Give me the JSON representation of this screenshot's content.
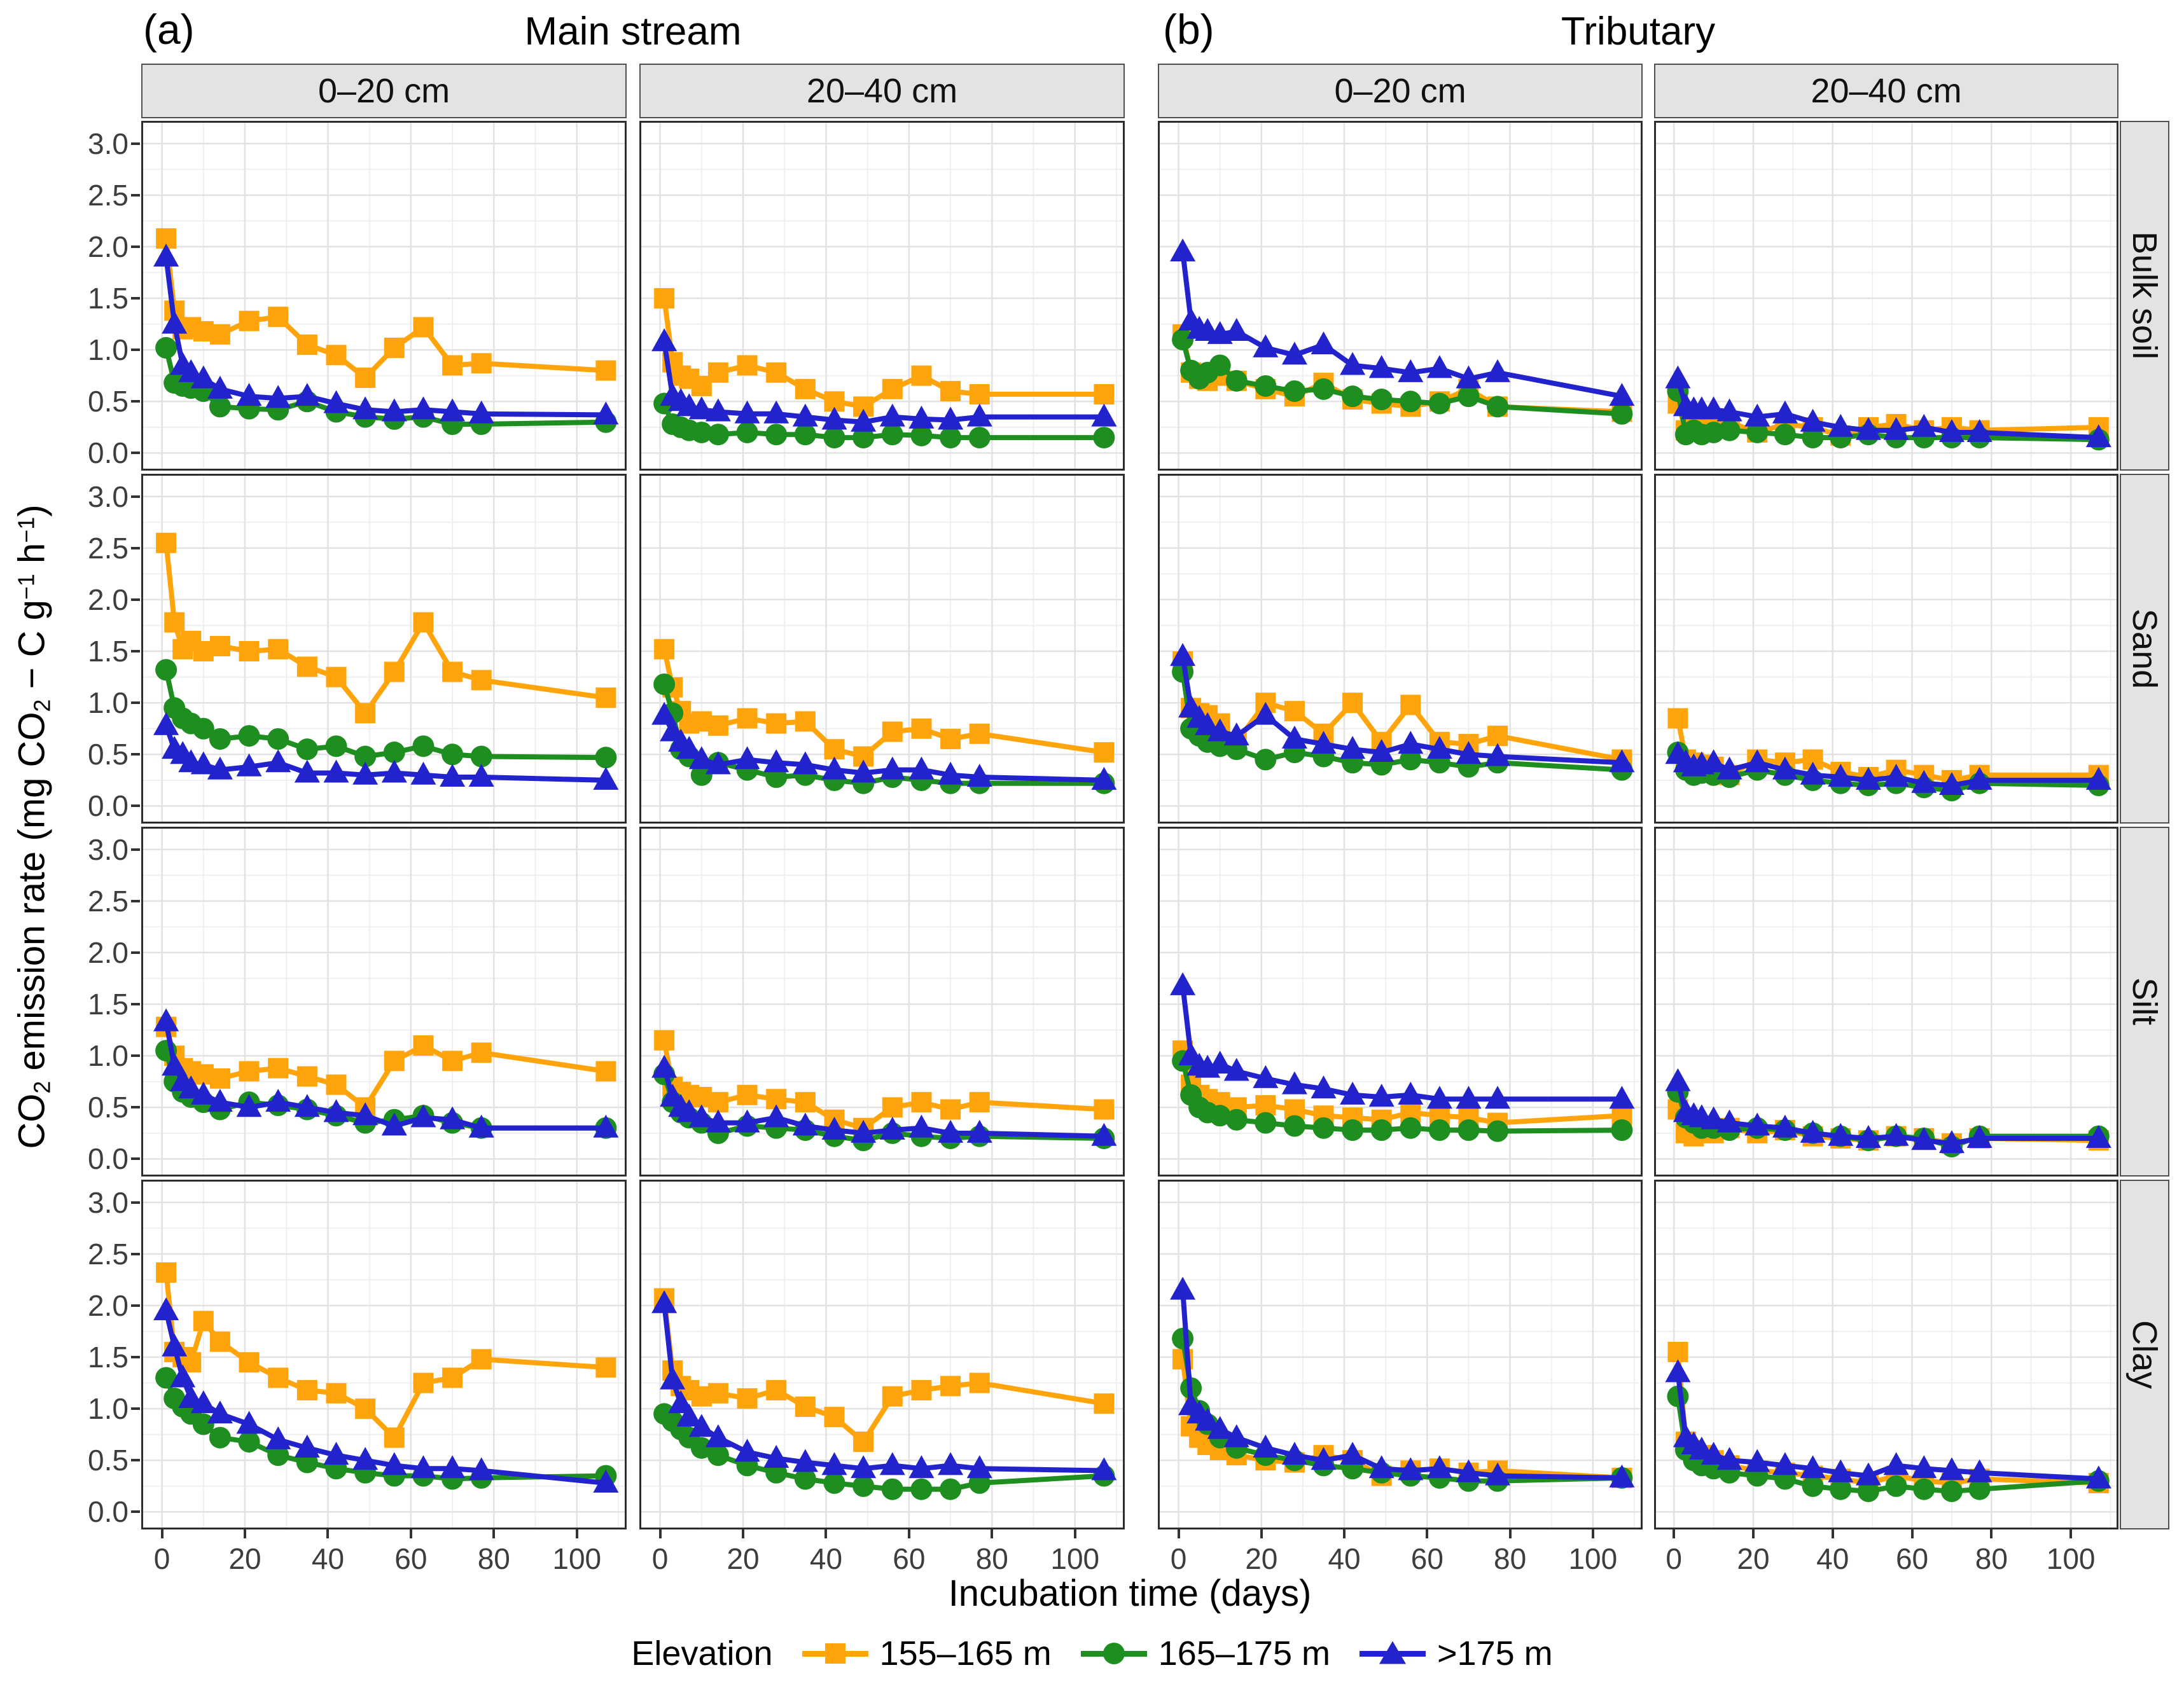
{
  "figure": {
    "tag_a": "(a)",
    "title_a": "Main stream",
    "tag_b": "(b)",
    "title_b": "Tributary"
  },
  "legend": {
    "title": "Elevation",
    "items": [
      {
        "label": "155–165 m",
        "color": "#FFA40B",
        "marker": "square"
      },
      {
        "label": "165–175 m",
        "color": "#1E8E20",
        "marker": "circle"
      },
      {
        "label": ">175 m",
        "color": "#2323CE",
        "marker": "triangle"
      }
    ]
  },
  "chart_data": {
    "type": "line",
    "title_groups": [
      {
        "tag": "(a)",
        "label": "Main stream"
      },
      {
        "tag": "(b)",
        "label": "Tributary"
      }
    ],
    "facet_cols": [
      "0–20 cm",
      "20–40 cm",
      "0–20 cm",
      "20–40 cm"
    ],
    "facet_rows": [
      "Bulk soil",
      "Sand",
      "Silt",
      "Clay"
    ],
    "xlabel": "Incubation time (days)",
    "ylabel_plain": "CO2 emission rate (mg CO2 − C g−1 h−1)",
    "ylabel_parts": [
      {
        "t": "CO"
      },
      {
        "t": "2",
        "m": "sub"
      },
      {
        "t": " emission rate (mg CO"
      },
      {
        "t": "2",
        "m": "sub"
      },
      {
        "t": " − C g"
      },
      {
        "t": "−1",
        "m": "sup"
      },
      {
        "t": " h"
      },
      {
        "t": "−1",
        "m": "sup"
      },
      {
        "t": ")"
      }
    ],
    "x_tick_values": [
      0,
      20,
      40,
      60,
      80,
      100
    ],
    "x_tick_labels": [
      "0",
      "20",
      "40",
      "60",
      "80",
      "100"
    ],
    "y_tick_values": [
      0,
      0.5,
      1,
      1.5,
      2,
      2.5,
      3
    ],
    "y_tick_labels": [
      "0.0",
      "0.5",
      "1.0",
      "1.5",
      "2.0",
      "2.5",
      "3.0"
    ],
    "x_minor": [
      10,
      30,
      50,
      70,
      90,
      110
    ],
    "y_minor": [
      0.25,
      0.75,
      1.25,
      1.75,
      2.25,
      2.75
    ],
    "x_range": [
      -5,
      112
    ],
    "y_range": [
      -0.17,
      3.22
    ],
    "grid": true,
    "legend_position": "bottom",
    "days": [
      1,
      3,
      5,
      7,
      10,
      14,
      21,
      28,
      35,
      42,
      49,
      56,
      63,
      70,
      77,
      107
    ],
    "series_meta": [
      {
        "name": "155–165 m",
        "color": "#FFA40B",
        "marker": "square"
      },
      {
        "name": "165–175 m",
        "color": "#1E8E20",
        "marker": "circle"
      },
      {
        "name": ">175 m",
        "color": "#2323CE",
        "marker": "triangle"
      }
    ],
    "panels": [
      {
        "soil": "Bulk soil",
        "group": "Main stream",
        "depth": "0–20 cm",
        "series": [
          [
            2.08,
            1.38,
            1.2,
            1.22,
            1.18,
            1.15,
            1.28,
            1.32,
            1.05,
            0.95,
            0.73,
            1.02,
            1.22,
            0.85,
            0.87,
            0.8
          ],
          [
            1.02,
            0.68,
            0.65,
            0.63,
            0.6,
            0.45,
            0.43,
            0.42,
            0.5,
            0.4,
            0.35,
            0.33,
            0.35,
            0.28,
            0.28,
            0.3
          ],
          [
            1.9,
            1.25,
            0.85,
            0.78,
            0.72,
            0.62,
            0.55,
            0.53,
            0.55,
            0.48,
            0.42,
            0.4,
            0.42,
            0.4,
            0.38,
            0.37
          ]
        ]
      },
      {
        "soil": "Bulk soil",
        "group": "Main stream",
        "depth": "20–40 cm",
        "series": [
          [
            1.5,
            0.88,
            0.75,
            0.72,
            0.65,
            0.78,
            0.85,
            0.78,
            0.62,
            0.5,
            0.45,
            0.62,
            0.75,
            0.6,
            0.57,
            0.57
          ],
          [
            0.48,
            0.28,
            0.25,
            0.22,
            0.2,
            0.18,
            0.2,
            0.18,
            0.18,
            0.15,
            0.15,
            0.18,
            0.17,
            0.15,
            0.15,
            0.15
          ],
          [
            1.08,
            0.55,
            0.5,
            0.45,
            0.42,
            0.4,
            0.38,
            0.38,
            0.35,
            0.32,
            0.3,
            0.35,
            0.33,
            0.32,
            0.35,
            0.35
          ]
        ]
      },
      {
        "soil": "Bulk soil",
        "group": "Tributary",
        "depth": "0–20 cm",
        "series": [
          [
            1.15,
            0.78,
            0.72,
            0.7,
            0.75,
            0.7,
            0.62,
            0.55,
            0.68,
            0.52,
            0.48,
            0.45,
            0.5,
            0.62,
            0.45,
            0.4
          ],
          [
            1.1,
            0.8,
            0.72,
            0.78,
            0.85,
            0.7,
            0.65,
            0.6,
            0.62,
            0.55,
            0.52,
            0.5,
            0.48,
            0.55,
            0.45,
            0.38
          ],
          [
            1.95,
            1.28,
            1.2,
            1.18,
            1.15,
            1.18,
            1.02,
            0.95,
            1.05,
            0.85,
            0.82,
            0.78,
            0.82,
            0.72,
            0.78,
            0.55
          ]
        ]
      },
      {
        "soil": "Bulk soil",
        "group": "Tributary",
        "depth": "20–40 cm",
        "series": [
          [
            0.48,
            0.22,
            0.28,
            0.25,
            0.28,
            0.3,
            0.2,
            0.28,
            0.25,
            0.17,
            0.25,
            0.28,
            0.22,
            0.25,
            0.22,
            0.25
          ],
          [
            0.6,
            0.18,
            0.22,
            0.18,
            0.2,
            0.22,
            0.2,
            0.18,
            0.15,
            0.15,
            0.18,
            0.15,
            0.15,
            0.15,
            0.15,
            0.13
          ],
          [
            0.72,
            0.45,
            0.42,
            0.42,
            0.42,
            0.4,
            0.35,
            0.38,
            0.3,
            0.25,
            0.22,
            0.22,
            0.25,
            0.2,
            0.2,
            0.15
          ]
        ]
      },
      {
        "soil": "Sand",
        "group": "Main stream",
        "depth": "0–20 cm",
        "series": [
          [
            2.55,
            1.78,
            1.52,
            1.6,
            1.5,
            1.55,
            1.5,
            1.52,
            1.35,
            1.25,
            0.9,
            1.3,
            1.78,
            1.3,
            1.22,
            1.05
          ],
          [
            1.32,
            0.95,
            0.85,
            0.8,
            0.75,
            0.65,
            0.68,
            0.65,
            0.55,
            0.58,
            0.48,
            0.52,
            0.58,
            0.5,
            0.48,
            0.47
          ],
          [
            0.78,
            0.55,
            0.5,
            0.42,
            0.4,
            0.35,
            0.38,
            0.42,
            0.32,
            0.32,
            0.3,
            0.32,
            0.3,
            0.28,
            0.28,
            0.25
          ]
        ]
      },
      {
        "soil": "Sand",
        "group": "Main stream",
        "depth": "20–40 cm",
        "series": [
          [
            1.52,
            1.15,
            0.92,
            0.8,
            0.82,
            0.78,
            0.85,
            0.8,
            0.82,
            0.55,
            0.48,
            0.72,
            0.75,
            0.65,
            0.7,
            0.52
          ],
          [
            1.18,
            0.9,
            0.55,
            0.48,
            0.3,
            0.42,
            0.35,
            0.28,
            0.3,
            0.25,
            0.22,
            0.28,
            0.25,
            0.22,
            0.22,
            0.22
          ],
          [
            0.88,
            0.72,
            0.62,
            0.55,
            0.45,
            0.4,
            0.45,
            0.42,
            0.4,
            0.35,
            0.32,
            0.35,
            0.35,
            0.3,
            0.28,
            0.25
          ]
        ]
      },
      {
        "soil": "Sand",
        "group": "Tributary",
        "depth": "0–20 cm",
        "series": [
          [
            1.4,
            0.95,
            0.9,
            0.88,
            0.8,
            0.62,
            1.0,
            0.92,
            0.7,
            1.0,
            0.62,
            0.98,
            0.62,
            0.6,
            0.68,
            0.45
          ],
          [
            1.3,
            0.75,
            0.68,
            0.62,
            0.58,
            0.55,
            0.45,
            0.52,
            0.48,
            0.42,
            0.4,
            0.45,
            0.42,
            0.38,
            0.42,
            0.35
          ],
          [
            1.45,
            0.95,
            0.85,
            0.78,
            0.72,
            0.68,
            0.88,
            0.65,
            0.6,
            0.55,
            0.52,
            0.6,
            0.55,
            0.5,
            0.48,
            0.42
          ]
        ]
      },
      {
        "soil": "Sand",
        "group": "Tributary",
        "depth": "20–40 cm",
        "series": [
          [
            0.85,
            0.45,
            0.42,
            0.4,
            0.38,
            0.3,
            0.45,
            0.42,
            0.45,
            0.33,
            0.28,
            0.35,
            0.3,
            0.25,
            0.3,
            0.3
          ],
          [
            0.52,
            0.35,
            0.3,
            0.32,
            0.3,
            0.28,
            0.35,
            0.3,
            0.25,
            0.22,
            0.2,
            0.22,
            0.18,
            0.15,
            0.22,
            0.2
          ],
          [
            0.5,
            0.42,
            0.38,
            0.4,
            0.42,
            0.35,
            0.42,
            0.35,
            0.3,
            0.28,
            0.25,
            0.28,
            0.22,
            0.2,
            0.25,
            0.25
          ]
        ]
      },
      {
        "soil": "Silt",
        "group": "Main stream",
        "depth": "0–20 cm",
        "series": [
          [
            1.28,
            1.0,
            0.88,
            0.85,
            0.82,
            0.78,
            0.85,
            0.88,
            0.8,
            0.72,
            0.5,
            0.95,
            1.1,
            0.95,
            1.03,
            0.85
          ],
          [
            1.05,
            0.75,
            0.65,
            0.6,
            0.55,
            0.48,
            0.55,
            0.52,
            0.48,
            0.42,
            0.35,
            0.38,
            0.42,
            0.35,
            0.3,
            0.3
          ],
          [
            1.33,
            0.9,
            0.75,
            0.68,
            0.62,
            0.55,
            0.5,
            0.55,
            0.5,
            0.45,
            0.42,
            0.32,
            0.4,
            0.38,
            0.3,
            0.3
          ]
        ]
      },
      {
        "soil": "Silt",
        "group": "Main stream",
        "depth": "20–40 cm",
        "series": [
          [
            1.15,
            0.7,
            0.65,
            0.62,
            0.6,
            0.55,
            0.62,
            0.58,
            0.55,
            0.38,
            0.3,
            0.5,
            0.55,
            0.48,
            0.55,
            0.48
          ],
          [
            0.82,
            0.55,
            0.45,
            0.4,
            0.35,
            0.25,
            0.32,
            0.3,
            0.28,
            0.22,
            0.18,
            0.25,
            0.22,
            0.2,
            0.22,
            0.2
          ],
          [
            0.88,
            0.6,
            0.5,
            0.45,
            0.4,
            0.35,
            0.35,
            0.4,
            0.32,
            0.28,
            0.25,
            0.28,
            0.3,
            0.25,
            0.25,
            0.22
          ]
        ]
      },
      {
        "soil": "Silt",
        "group": "Tributary",
        "depth": "0–20 cm",
        "series": [
          [
            1.05,
            0.72,
            0.62,
            0.58,
            0.55,
            0.5,
            0.52,
            0.48,
            0.42,
            0.4,
            0.38,
            0.45,
            0.42,
            0.4,
            0.35,
            0.42
          ],
          [
            0.95,
            0.62,
            0.5,
            0.45,
            0.42,
            0.38,
            0.35,
            0.32,
            0.3,
            0.28,
            0.28,
            0.3,
            0.28,
            0.28,
            0.27,
            0.28
          ],
          [
            1.68,
            1.0,
            0.9,
            0.88,
            0.92,
            0.85,
            0.78,
            0.72,
            0.68,
            0.62,
            0.6,
            0.62,
            0.58,
            0.58,
            0.58,
            0.58
          ]
        ]
      },
      {
        "soil": "Silt",
        "group": "Tributary",
        "depth": "20–40 cm",
        "series": [
          [
            0.48,
            0.25,
            0.22,
            0.28,
            0.25,
            0.3,
            0.25,
            0.28,
            0.22,
            0.2,
            0.18,
            0.22,
            0.2,
            0.15,
            0.2,
            0.18
          ],
          [
            0.65,
            0.4,
            0.35,
            0.3,
            0.3,
            0.28,
            0.3,
            0.28,
            0.25,
            0.22,
            0.18,
            0.22,
            0.2,
            0.12,
            0.22,
            0.22
          ],
          [
            0.75,
            0.45,
            0.42,
            0.4,
            0.38,
            0.35,
            0.32,
            0.3,
            0.25,
            0.22,
            0.2,
            0.22,
            0.18,
            0.15,
            0.2,
            0.2
          ]
        ]
      },
      {
        "soil": "Clay",
        "group": "Main stream",
        "depth": "0–20 cm",
        "series": [
          [
            2.32,
            1.55,
            1.5,
            1.45,
            1.85,
            1.65,
            1.45,
            1.3,
            1.18,
            1.15,
            1.0,
            0.72,
            1.25,
            1.3,
            1.48,
            1.4
          ],
          [
            1.3,
            1.1,
            1.02,
            0.95,
            0.85,
            0.72,
            0.68,
            0.55,
            0.48,
            0.42,
            0.38,
            0.35,
            0.35,
            0.32,
            0.33,
            0.35
          ],
          [
            1.95,
            1.6,
            1.3,
            1.1,
            1.05,
            0.95,
            0.85,
            0.7,
            0.62,
            0.55,
            0.5,
            0.45,
            0.42,
            0.42,
            0.4,
            0.28
          ]
        ]
      },
      {
        "soil": "Clay",
        "group": "Main stream",
        "depth": "20–40 cm",
        "series": [
          [
            2.07,
            1.37,
            1.22,
            1.18,
            1.12,
            1.15,
            1.1,
            1.18,
            1.02,
            0.92,
            0.68,
            1.12,
            1.18,
            1.22,
            1.25,
            1.05
          ],
          [
            0.95,
            0.88,
            0.8,
            0.72,
            0.62,
            0.55,
            0.45,
            0.38,
            0.32,
            0.28,
            0.25,
            0.22,
            0.22,
            0.22,
            0.28,
            0.35
          ],
          [
            2.02,
            1.28,
            1.05,
            0.92,
            0.82,
            0.72,
            0.58,
            0.52,
            0.48,
            0.45,
            0.42,
            0.45,
            0.42,
            0.45,
            0.42,
            0.4
          ]
        ]
      },
      {
        "soil": "Clay",
        "group": "Tributary",
        "depth": "0–20 cm",
        "series": [
          [
            1.48,
            0.83,
            0.72,
            0.65,
            0.6,
            0.55,
            0.5,
            0.48,
            0.55,
            0.5,
            0.35,
            0.4,
            0.42,
            0.38,
            0.4,
            0.33
          ],
          [
            1.68,
            1.2,
            0.98,
            0.85,
            0.72,
            0.62,
            0.55,
            0.5,
            0.45,
            0.42,
            0.38,
            0.35,
            0.33,
            0.3,
            0.3,
            0.33
          ],
          [
            2.15,
            1.03,
            0.95,
            0.88,
            0.8,
            0.72,
            0.62,
            0.55,
            0.5,
            0.55,
            0.42,
            0.4,
            0.42,
            0.38,
            0.35,
            0.33
          ]
        ]
      },
      {
        "soil": "Clay",
        "group": "Tributary",
        "depth": "20–40 cm",
        "series": [
          [
            1.55,
            0.68,
            0.6,
            0.55,
            0.5,
            0.45,
            0.4,
            0.38,
            0.35,
            0.32,
            0.28,
            0.35,
            0.3,
            0.28,
            0.32,
            0.28
          ],
          [
            1.12,
            0.6,
            0.5,
            0.45,
            0.42,
            0.38,
            0.35,
            0.32,
            0.25,
            0.22,
            0.2,
            0.25,
            0.22,
            0.2,
            0.22,
            0.3
          ],
          [
            1.35,
            0.72,
            0.65,
            0.6,
            0.55,
            0.5,
            0.48,
            0.45,
            0.42,
            0.38,
            0.35,
            0.45,
            0.42,
            0.4,
            0.38,
            0.32
          ]
        ]
      }
    ]
  }
}
